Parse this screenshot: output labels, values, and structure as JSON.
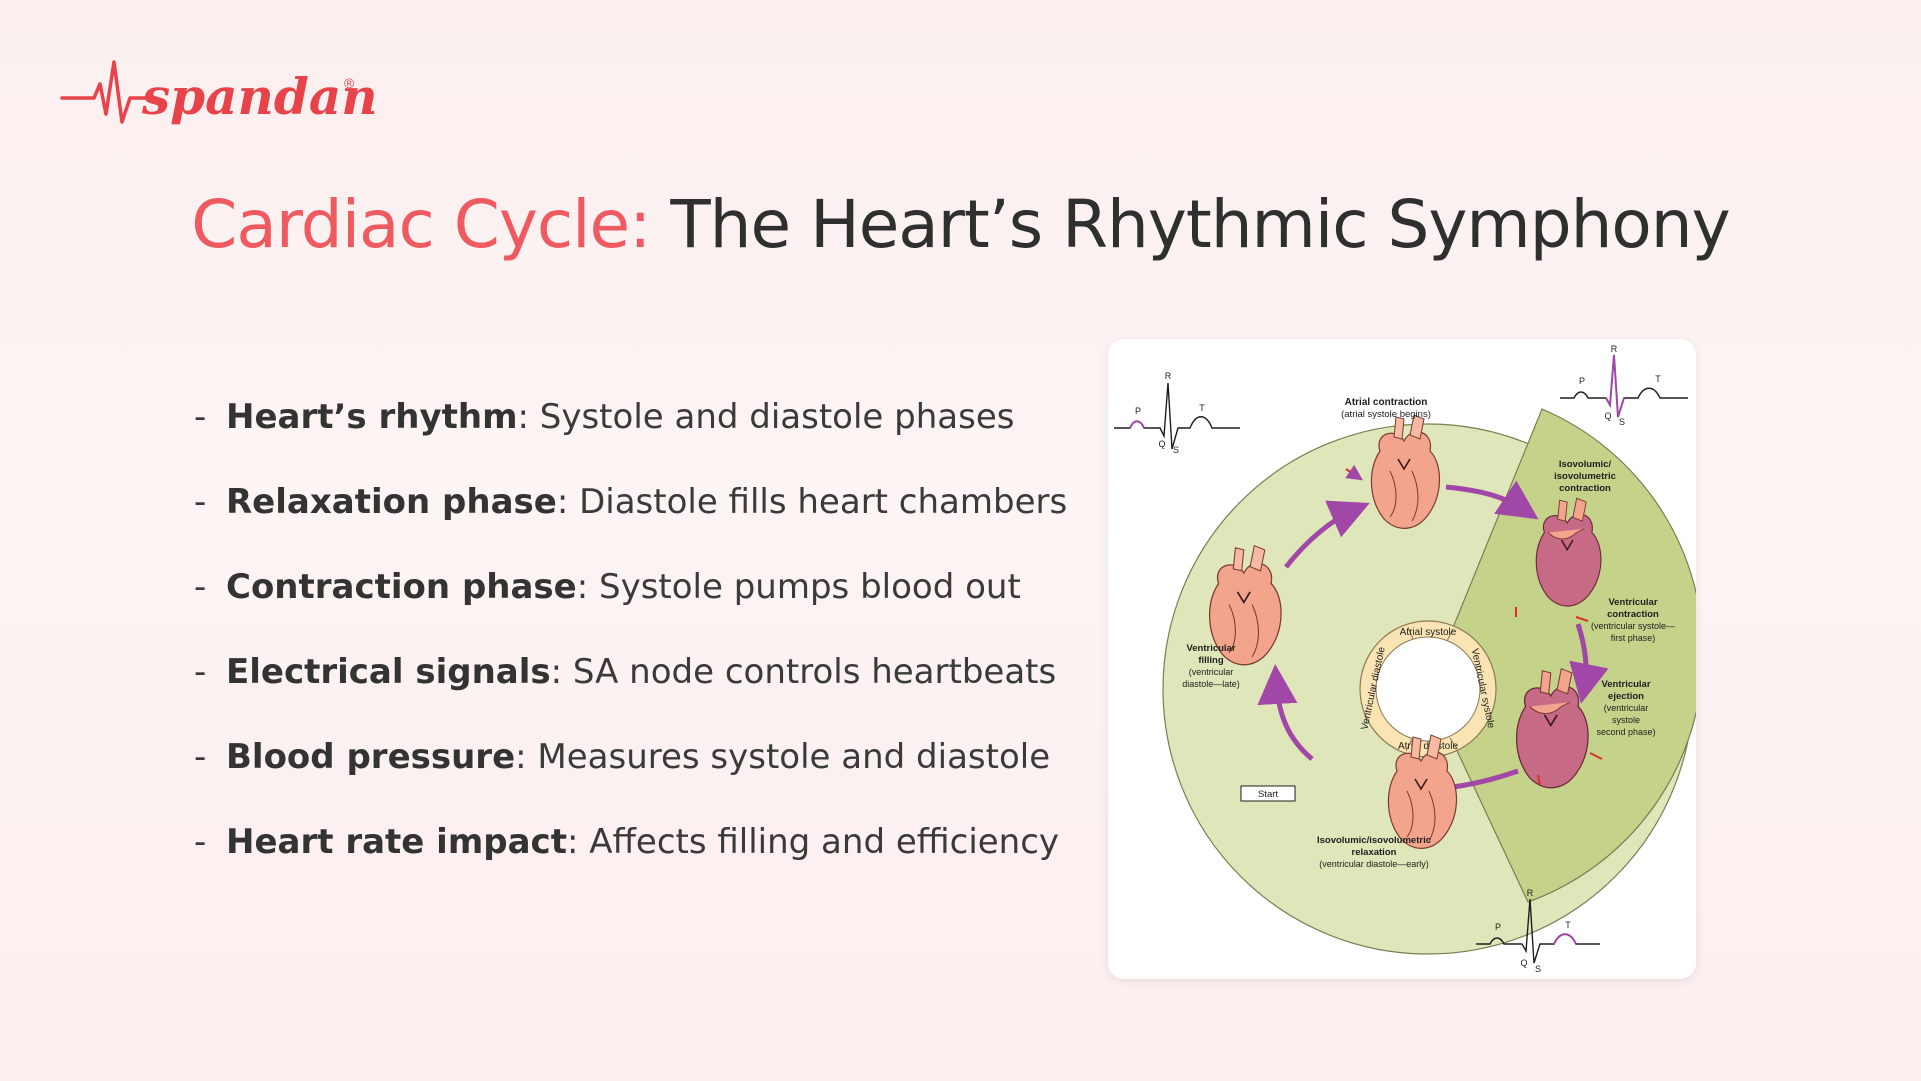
{
  "brand": {
    "name": "spandan",
    "reg": "®",
    "color": "#e8434a"
  },
  "title": {
    "accent": "Cardiac Cycle:",
    "rest": " The Heart’s Rhythmic Symphony",
    "accent_color": "#ee5a60"
  },
  "bullets": [
    {
      "term": "Heart’s rhythm",
      "desc": ": Systole and diastole phases"
    },
    {
      "term": "Relaxation phase",
      "desc": ": Diastole fills heart chambers"
    },
    {
      "term": "Contraction phase",
      "desc": ": Systole pumps blood out"
    },
    {
      "term": "Electrical signals",
      "desc": ": SA node controls heartbeats"
    },
    {
      "term": "Blood pressure",
      "desc": ": Measures systole and diastole"
    },
    {
      "term": "Heart rate impact",
      "desc": ": Affects filling and efficiency"
    }
  ],
  "diagram": {
    "ecg_labels": {
      "p": "P",
      "q": "Q",
      "r": "R",
      "s": "S",
      "t": "T"
    },
    "ring": {
      "systole": "Atrial systole",
      "diastole": "Atrial diastole",
      "vent_diastole": "Ventricular diastole",
      "vent_systole": "Ventricular systole"
    },
    "phases": {
      "atrial": {
        "title": "Atrial contraction",
        "sub": "(atrial systole begins)"
      },
      "isocontr": {
        "l1": "Isovolumic/",
        "l2": "isovolumetric",
        "l3": "contraction"
      },
      "ventcontr": {
        "l1": "Ventricular",
        "l2": "contraction",
        "l3": "(ventricular systole—",
        "l4": "first phase)"
      },
      "ventejec": {
        "l1": "Ventricular",
        "l2": "ejection",
        "l3": "(ventricular",
        "l4": "systole",
        "l5": "second phase)"
      },
      "isorelax": {
        "l1": "Isovolumic/isovolumetric",
        "l2": "relaxation",
        "l3": "(ventricular diastole—early)"
      },
      "ventfill": {
        "l1": "Ventricular",
        "l2": "filling",
        "l3": "(ventricular",
        "l4": "diastole—late)"
      }
    },
    "start": "Start",
    "colors": {
      "outer_light": "#dfe6b9",
      "outer_dark": "#c5d28a",
      "ring": "#fbe4b3",
      "arrow": "#a047a8",
      "heart": "#f2a48c",
      "heart_dark": "#c76a86",
      "ecg_highlight": "#a047a8"
    }
  }
}
